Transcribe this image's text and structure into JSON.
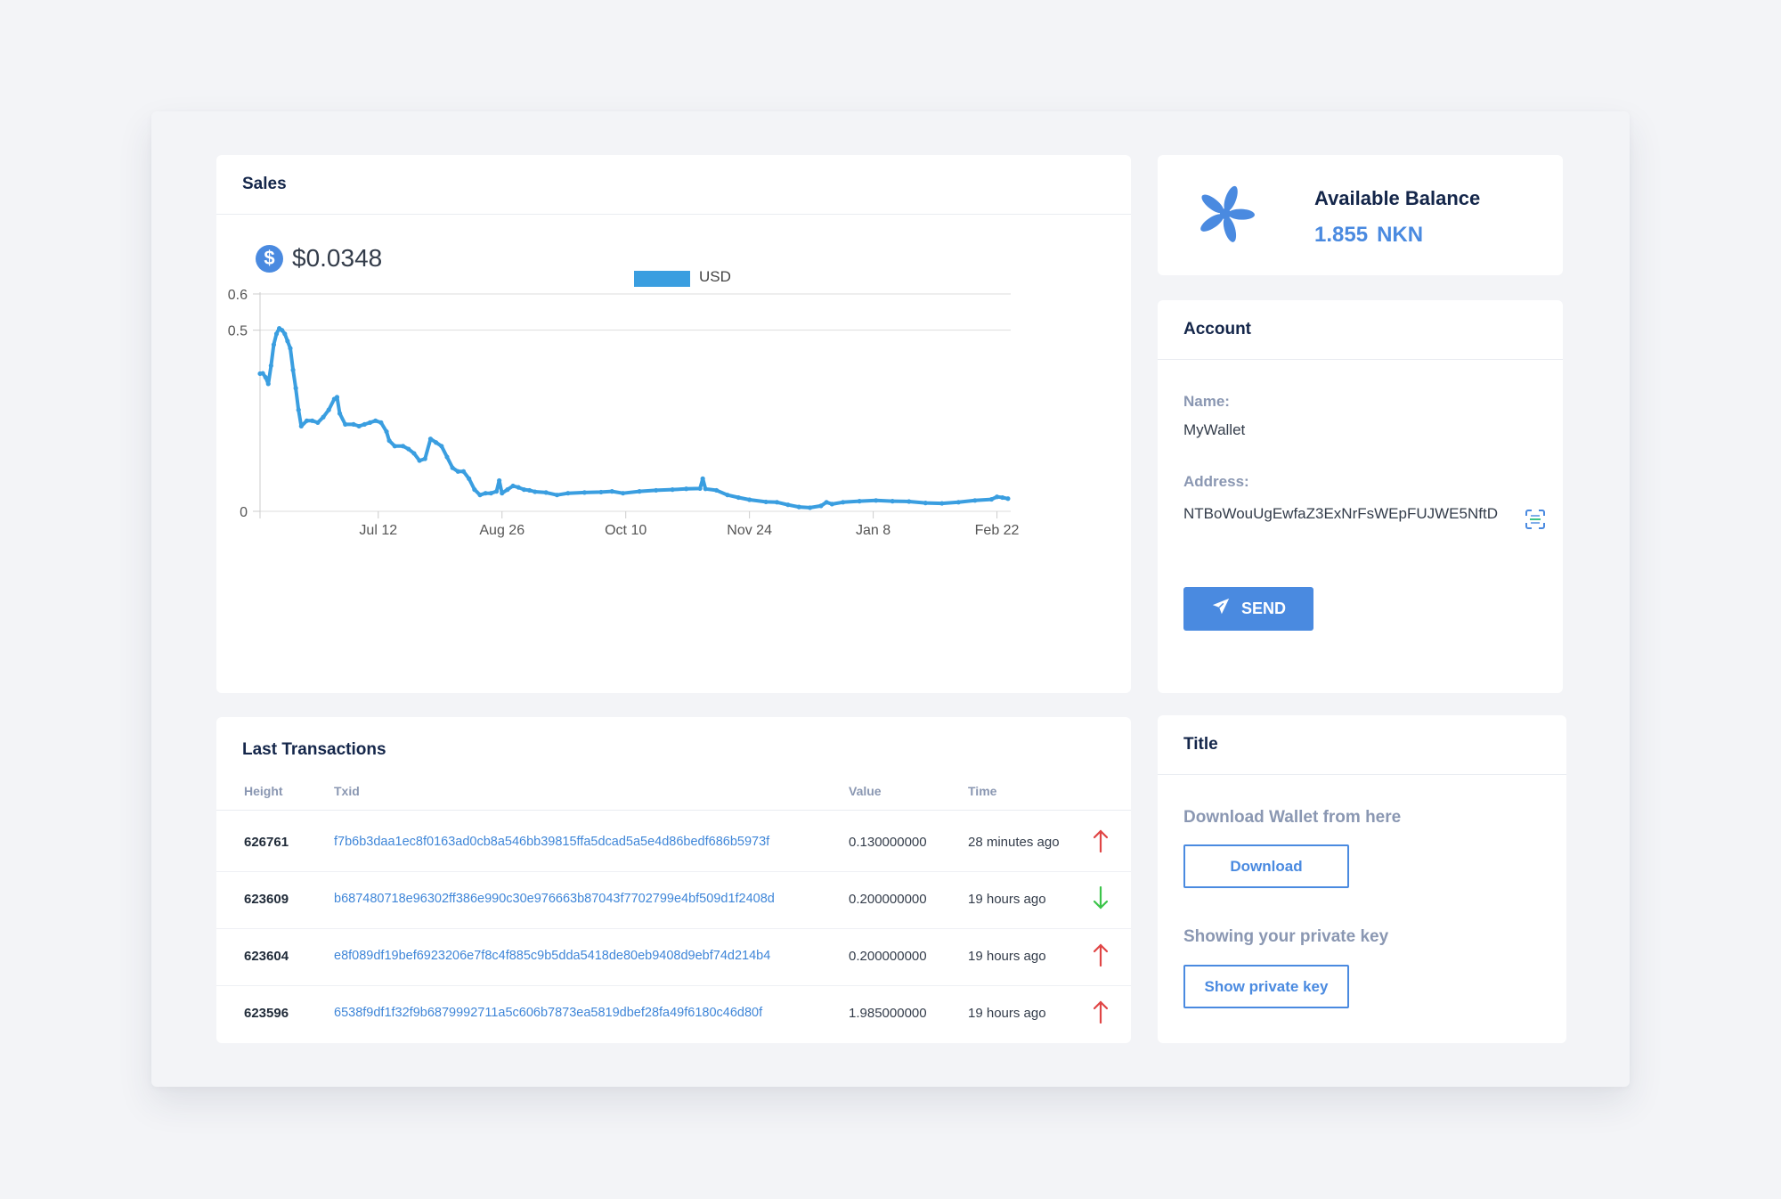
{
  "sales": {
    "title": "Sales",
    "price": "$0.0348",
    "currency_icon": "dollar-icon"
  },
  "chart_data": {
    "type": "line",
    "title": "",
    "xlabel": "",
    "ylabel": "",
    "legend": [
      "USD"
    ],
    "legend_position": "top",
    "ylim": [
      0,
      0.6
    ],
    "y_ticks": [
      "0",
      "0.5",
      "0.6"
    ],
    "x_tick_labels": [
      "Jul 12",
      "Aug 26",
      "Oct 10",
      "Nov 24",
      "Jan 8",
      "Feb 22"
    ],
    "x_tick_days": [
      43,
      88,
      133,
      178,
      223,
      268
    ],
    "x_range_days": [
      0,
      273
    ],
    "grid": "horizontal",
    "color": "#3a9ee0",
    "series": [
      {
        "name": "USD",
        "points": [
          [
            0,
            0.38
          ],
          [
            1,
            0.381
          ],
          [
            2,
            0.37
          ],
          [
            3,
            0.352
          ],
          [
            4,
            0.402
          ],
          [
            5,
            0.46
          ],
          [
            6,
            0.49
          ],
          [
            7,
            0.505
          ],
          [
            8,
            0.5
          ],
          [
            9,
            0.49
          ],
          [
            10,
            0.47
          ],
          [
            11,
            0.45
          ],
          [
            12,
            0.39
          ],
          [
            13,
            0.34
          ],
          [
            14,
            0.28
          ],
          [
            15,
            0.235
          ],
          [
            17,
            0.25
          ],
          [
            19,
            0.25
          ],
          [
            21,
            0.245
          ],
          [
            23,
            0.26
          ],
          [
            25,
            0.28
          ],
          [
            27,
            0.31
          ],
          [
            28,
            0.315
          ],
          [
            29,
            0.27
          ],
          [
            31,
            0.24
          ],
          [
            34,
            0.24
          ],
          [
            36,
            0.235
          ],
          [
            38,
            0.24
          ],
          [
            40,
            0.245
          ],
          [
            42,
            0.25
          ],
          [
            44,
            0.245
          ],
          [
            46,
            0.22
          ],
          [
            47,
            0.195
          ],
          [
            49,
            0.18
          ],
          [
            52,
            0.18
          ],
          [
            54,
            0.172
          ],
          [
            56,
            0.16
          ],
          [
            58,
            0.14
          ],
          [
            60,
            0.145
          ],
          [
            62,
            0.2
          ],
          [
            64,
            0.19
          ],
          [
            66,
            0.18
          ],
          [
            68,
            0.15
          ],
          [
            70,
            0.12
          ],
          [
            72,
            0.11
          ],
          [
            74,
            0.11
          ],
          [
            76,
            0.09
          ],
          [
            78,
            0.06
          ],
          [
            80,
            0.045
          ],
          [
            82,
            0.05
          ],
          [
            84,
            0.05
          ],
          [
            86,
            0.055
          ],
          [
            87,
            0.085
          ],
          [
            88,
            0.05
          ],
          [
            90,
            0.06
          ],
          [
            92,
            0.07
          ],
          [
            94,
            0.066
          ],
          [
            96,
            0.06
          ],
          [
            98,
            0.058
          ],
          [
            100,
            0.054
          ],
          [
            104,
            0.052
          ],
          [
            108,
            0.045
          ],
          [
            112,
            0.05
          ],
          [
            118,
            0.052
          ],
          [
            124,
            0.053
          ],
          [
            128,
            0.055
          ],
          [
            132,
            0.05
          ],
          [
            138,
            0.055
          ],
          [
            144,
            0.058
          ],
          [
            150,
            0.06
          ],
          [
            155,
            0.062
          ],
          [
            160,
            0.063
          ],
          [
            161,
            0.09
          ],
          [
            162,
            0.062
          ],
          [
            166,
            0.058
          ],
          [
            170,
            0.045
          ],
          [
            174,
            0.038
          ],
          [
            178,
            0.032
          ],
          [
            184,
            0.026
          ],
          [
            188,
            0.025
          ],
          [
            192,
            0.018
          ],
          [
            196,
            0.012
          ],
          [
            200,
            0.01
          ],
          [
            204,
            0.015
          ],
          [
            206,
            0.025
          ],
          [
            208,
            0.02
          ],
          [
            212,
            0.025
          ],
          [
            218,
            0.028
          ],
          [
            224,
            0.03
          ],
          [
            230,
            0.028
          ],
          [
            236,
            0.027
          ],
          [
            242,
            0.023
          ],
          [
            248,
            0.022
          ],
          [
            254,
            0.025
          ],
          [
            260,
            0.03
          ],
          [
            266,
            0.033
          ],
          [
            268,
            0.04
          ],
          [
            270,
            0.038
          ],
          [
            272,
            0.035
          ]
        ]
      }
    ]
  },
  "transactions": {
    "title": "Last Transactions",
    "columns": {
      "height": "Height",
      "txid": "Txid",
      "value": "Value",
      "time": "Time"
    },
    "rows": [
      {
        "height": "626761",
        "txid": "f7b6b3daa1ec8f0163ad0cb8a546bb39815ffa5dcad5a5e4d86bedf686b5973f",
        "value": "0.130000000",
        "time": "28 minutes ago",
        "direction": "out",
        "dir_color": "#e04545",
        "dir_icon": "arrow-up-icon"
      },
      {
        "height": "623609",
        "txid": "b687480718e96302ff386e990c30e976663b87043f7702799e4bf509d1f2408d",
        "value": "0.200000000",
        "time": "19 hours ago",
        "direction": "in",
        "dir_color": "#3cc44a",
        "dir_icon": "arrow-down-icon"
      },
      {
        "height": "623604",
        "txid": "e8f089df19bef6923206e7f8c4f885c9b5dda5418de80eb9408d9ebf74d214b4",
        "value": "0.200000000",
        "time": "19 hours ago",
        "direction": "out",
        "dir_color": "#e04545",
        "dir_icon": "arrow-up-icon"
      },
      {
        "height": "623596",
        "txid": "6538f9df1f32f9b6879992711a5c606b7873ea5819dbef28fa49f6180c46d80f",
        "value": "1.985000000",
        "time": "19 hours ago",
        "direction": "out",
        "dir_color": "#e04545",
        "dir_icon": "arrow-up-icon"
      }
    ]
  },
  "balance": {
    "label": "Available Balance",
    "amount": "1.855",
    "unit": "NKN",
    "logo_icon": "nkn-logo-icon"
  },
  "account": {
    "title": "Account",
    "name_label": "Name:",
    "name_value": "MyWallet",
    "address_label": "Address:",
    "address_value": "NTBoWouUgEwfaZ3ExNrFsWEpFUJWE5NftD",
    "copy_icon": "qr-scan-icon",
    "send_label": "SEND",
    "send_icon": "paper-plane-icon"
  },
  "extras": {
    "title": "Title",
    "download_text": "Download Wallet from here",
    "download_label": "Download",
    "private_key_text": "Showing your private key",
    "private_key_label": "Show private key"
  },
  "colors": {
    "accent": "#4a8ae0",
    "chart_line": "#3a9ee0",
    "out_arrow": "#e04545",
    "in_arrow": "#3cc44a"
  }
}
